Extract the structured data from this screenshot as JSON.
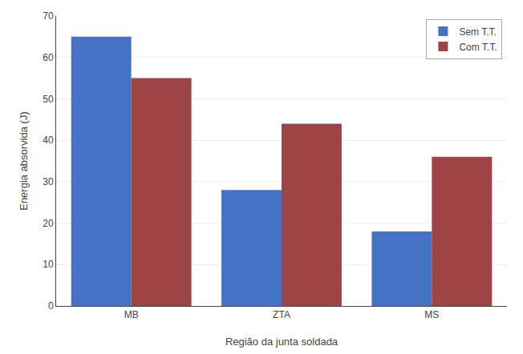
{
  "chart_data": {
    "type": "bar",
    "xlabel": "Região da junta soldada",
    "ylabel": "Energia absorvida (J)",
    "categories": [
      "MB",
      "ZTA",
      "MS"
    ],
    "series": [
      {
        "name": "Sem T.T.",
        "color": "#4472C4",
        "values": [
          65,
          28,
          18
        ]
      },
      {
        "name": "Com T.T.",
        "color": "#9E4444",
        "values": [
          55,
          44,
          36
        ]
      }
    ],
    "ylim": [
      0,
      70
    ],
    "yticks": [
      0,
      10,
      20,
      30,
      40,
      50,
      60,
      70
    ],
    "grid": true,
    "legend": "upper right"
  }
}
